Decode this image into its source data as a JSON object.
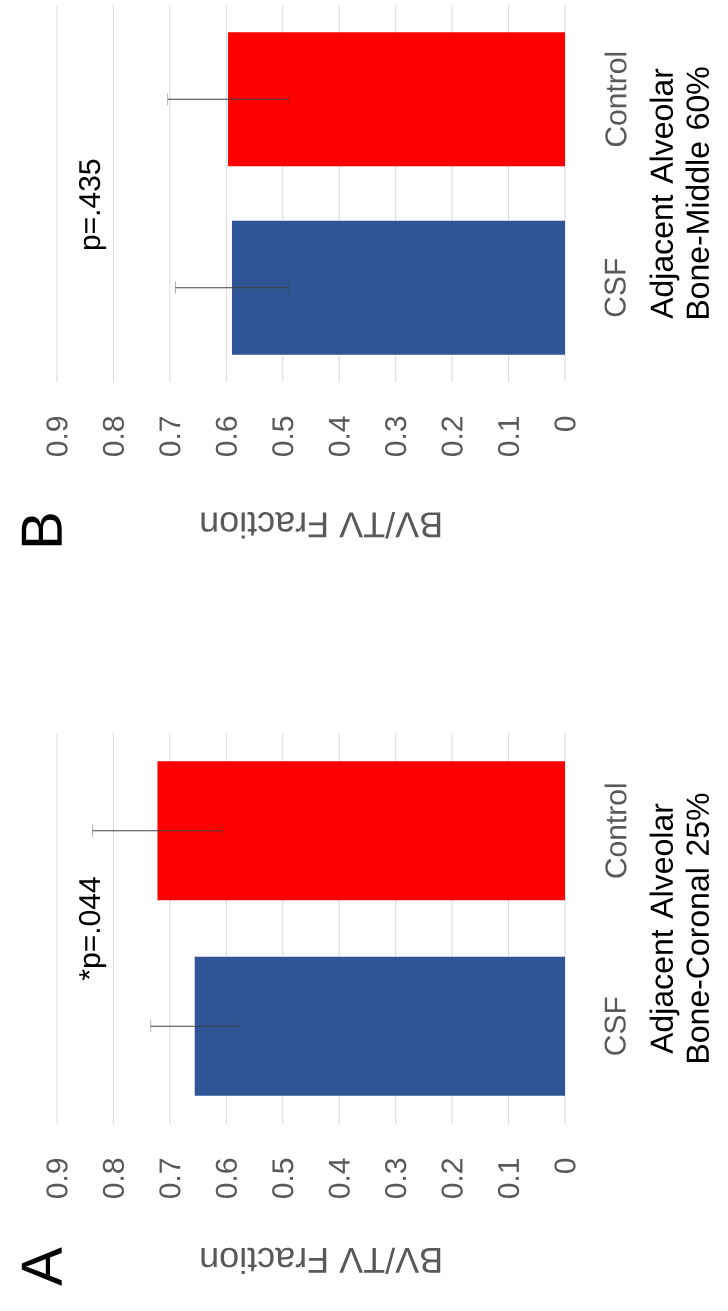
{
  "chart_data": [
    {
      "type": "bar",
      "orientation": "horizontal",
      "title": "B",
      "categories": [
        "Control",
        "CSF"
      ],
      "values": [
        0.597,
        0.59
      ],
      "colors": [
        "#ff0000",
        "#2f5597"
      ],
      "errors": [
        0.107,
        0.1
      ],
      "xlim": [
        0.9,
        0
      ],
      "xticks": [
        0.9,
        0.8,
        0.7,
        0.6,
        0.5,
        0.4,
        0.3,
        0.2,
        0.1,
        0
      ],
      "grid": "x",
      "xlabel": "BV/TV Fraction",
      "ylabel": "Adjacent Alveolar Bone-Middle 60%",
      "annotations": [
        "p=.435"
      ]
    },
    {
      "type": "bar",
      "orientation": "horizontal",
      "title": "A",
      "categories": [
        "Control",
        "CSF"
      ],
      "values": [
        0.722,
        0.656
      ],
      "colors": [
        "#ff0000",
        "#2f5597"
      ],
      "errors": [
        0.115,
        0.078
      ],
      "xlim": [
        0.9,
        0
      ],
      "xticks": [
        0.9,
        0.8,
        0.7,
        0.6,
        0.5,
        0.4,
        0.3,
        0.2,
        0.1,
        0
      ],
      "grid": "x",
      "xlabel": "BV/TV Fraction",
      "ylabel": "Adjacent Alveolar Bone-Coronal 25%",
      "annotations": [
        "*p=.044"
      ]
    }
  ]
}
